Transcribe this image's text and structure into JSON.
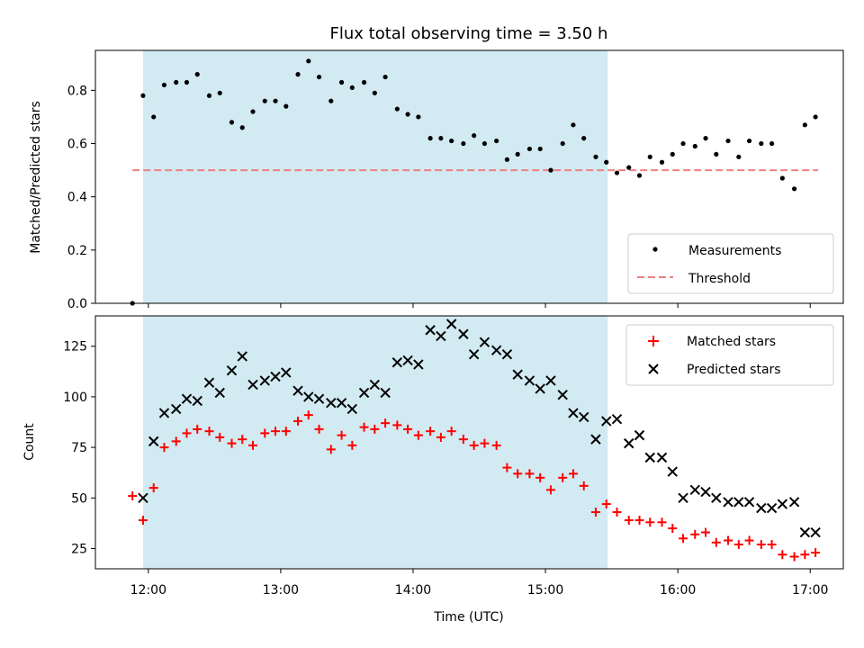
{
  "chart_data": [
    {
      "type": "scatter",
      "title": "Flux total observing time = 3.50 h",
      "xlabel": "",
      "ylabel": "Matched/Predicted stars",
      "ylim": [
        0,
        0.95
      ],
      "yticks": [
        "0.0",
        "0.2",
        "0.4",
        "0.6",
        "0.8"
      ],
      "shaded_region": {
        "x": [
          11.96,
          15.47
        ],
        "color": "#add8e6"
      },
      "legend": {
        "placement": "lower-right",
        "entries": [
          "Measurements",
          "Threshold"
        ]
      },
      "threshold": {
        "name": "Threshold",
        "value": 0.5,
        "x": [
          11.88,
          17.06
        ],
        "color": "#f08080"
      },
      "series": [
        {
          "name": "Measurements",
          "color": "#000000",
          "marker": "dot",
          "x": [
            11.88,
            11.96,
            12.04,
            12.12,
            12.21,
            12.29,
            12.37,
            12.46,
            12.54,
            12.63,
            12.71,
            12.79,
            12.88,
            12.96,
            13.04,
            13.13,
            13.21,
            13.29,
            13.38,
            13.46,
            13.54,
            13.63,
            13.71,
            13.79,
            13.88,
            13.96,
            14.04,
            14.13,
            14.21,
            14.29,
            14.38,
            14.46,
            14.54,
            14.63,
            14.71,
            14.79,
            14.88,
            14.96,
            15.04,
            15.13,
            15.21,
            15.29,
            15.38,
            15.46,
            15.54,
            15.63,
            15.71,
            15.79,
            15.88,
            15.96,
            16.04,
            16.13,
            16.21,
            16.29,
            16.38,
            16.46,
            16.54,
            16.63,
            16.71,
            16.79,
            16.88,
            16.96,
            17.04
          ],
          "y": [
            0.0,
            0.78,
            0.7,
            0.82,
            0.83,
            0.83,
            0.86,
            0.78,
            0.79,
            0.68,
            0.66,
            0.72,
            0.76,
            0.76,
            0.74,
            0.86,
            0.91,
            0.85,
            0.76,
            0.83,
            0.81,
            0.83,
            0.79,
            0.85,
            0.73,
            0.71,
            0.7,
            0.62,
            0.62,
            0.61,
            0.6,
            0.63,
            0.6,
            0.61,
            0.54,
            0.56,
            0.58,
            0.58,
            0.5,
            0.6,
            0.67,
            0.62,
            0.55,
            0.53,
            0.49,
            0.51,
            0.48,
            0.55,
            0.53,
            0.56,
            0.6,
            0.59,
            0.62,
            0.56,
            0.61,
            0.55,
            0.61,
            0.6,
            0.6,
            0.47,
            0.43,
            0.67,
            0.7
          ]
        }
      ]
    },
    {
      "type": "scatter",
      "title": "",
      "xlabel": "Time (UTC)",
      "ylabel": "Count",
      "xlim": [
        11.6,
        17.25
      ],
      "ylim": [
        15,
        140
      ],
      "xticks": [
        {
          "value": 12,
          "label": "12:00"
        },
        {
          "value": 13,
          "label": "13:00"
        },
        {
          "value": 14,
          "label": "14:00"
        },
        {
          "value": 15,
          "label": "15:00"
        },
        {
          "value": 16,
          "label": "16:00"
        },
        {
          "value": 17,
          "label": "17:00"
        }
      ],
      "yticks": [
        "25",
        "50",
        "75",
        "100",
        "125"
      ],
      "shaded_region": {
        "x": [
          11.96,
          15.47
        ],
        "color": "#add8e6"
      },
      "legend": {
        "placement": "upper-right",
        "entries": [
          "Matched stars",
          "Predicted stars"
        ]
      },
      "series": [
        {
          "name": "Matched stars",
          "color": "#ff0000",
          "marker": "plus",
          "x": [
            11.88,
            11.96,
            12.04,
            12.12,
            12.21,
            12.29,
            12.37,
            12.46,
            12.54,
            12.63,
            12.71,
            12.79,
            12.88,
            12.96,
            13.04,
            13.13,
            13.21,
            13.29,
            13.38,
            13.46,
            13.54,
            13.63,
            13.71,
            13.79,
            13.88,
            13.96,
            14.04,
            14.13,
            14.21,
            14.29,
            14.38,
            14.46,
            14.54,
            14.63,
            14.71,
            14.79,
            14.88,
            14.96,
            15.04,
            15.13,
            15.21,
            15.29,
            15.38,
            15.46,
            15.54,
            15.63,
            15.71,
            15.79,
            15.88,
            15.96,
            16.04,
            16.13,
            16.21,
            16.29,
            16.38,
            16.46,
            16.54,
            16.63,
            16.71,
            16.79,
            16.88,
            16.96,
            17.04
          ],
          "y": [
            51,
            39,
            55,
            75,
            78,
            82,
            84,
            83,
            80,
            77,
            79,
            76,
            82,
            83,
            83,
            88,
            91,
            84,
            74,
            81,
            76,
            85,
            84,
            87,
            86,
            84,
            81,
            83,
            80,
            83,
            79,
            76,
            77,
            76,
            65,
            62,
            62,
            60,
            54,
            60,
            62,
            56,
            43,
            47,
            43,
            39,
            39,
            38,
            38,
            35,
            30,
            32,
            33,
            28,
            29,
            27,
            29,
            27,
            27,
            22,
            21,
            22,
            23
          ]
        },
        {
          "name": "Predicted stars",
          "color": "#000000",
          "marker": "x",
          "x": [
            11.96,
            12.04,
            12.12,
            12.21,
            12.29,
            12.37,
            12.46,
            12.54,
            12.63,
            12.71,
            12.79,
            12.88,
            12.96,
            13.04,
            13.13,
            13.21,
            13.29,
            13.38,
            13.46,
            13.54,
            13.63,
            13.71,
            13.79,
            13.88,
            13.96,
            14.04,
            14.13,
            14.21,
            14.29,
            14.38,
            14.46,
            14.54,
            14.63,
            14.71,
            14.79,
            14.88,
            14.96,
            15.04,
            15.13,
            15.21,
            15.29,
            15.38,
            15.46,
            15.54,
            15.63,
            15.71,
            15.79,
            15.88,
            15.96,
            16.04,
            16.13,
            16.21,
            16.29,
            16.38,
            16.46,
            16.54,
            16.63,
            16.71,
            16.79,
            16.88,
            16.96,
            17.04
          ],
          "y": [
            50,
            78,
            92,
            94,
            99,
            98,
            107,
            102,
            113,
            120,
            106,
            108,
            110,
            112,
            103,
            100,
            99,
            97,
            97,
            94,
            102,
            106,
            102,
            117,
            118,
            116,
            133,
            130,
            136,
            131,
            121,
            127,
            123,
            121,
            111,
            108,
            104,
            108,
            101,
            92,
            90,
            79,
            88,
            89,
            77,
            81,
            70,
            70,
            63,
            50,
            54,
            53,
            50,
            48,
            48,
            48,
            45,
            45,
            47,
            48,
            33,
            33
          ]
        }
      ]
    }
  ]
}
